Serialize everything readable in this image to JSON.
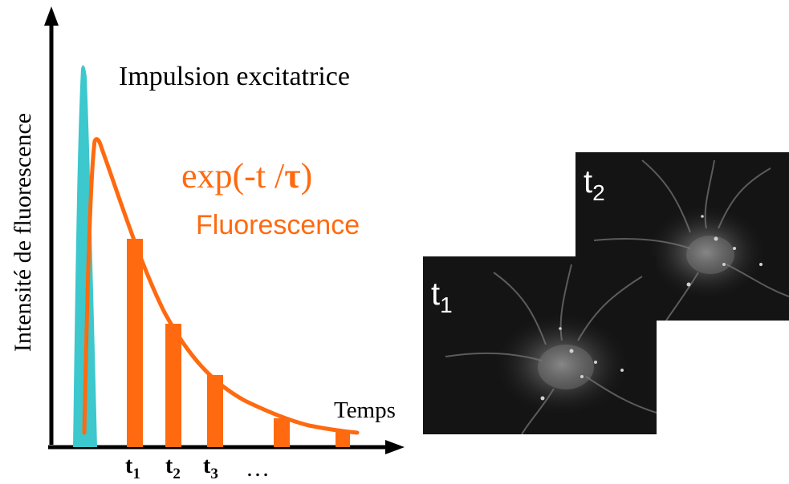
{
  "axes": {
    "y_label": "Intensité de fluorescence",
    "x_label": "Temps"
  },
  "labels": {
    "excitation": "Impulsion excitatrice",
    "formula_prefix": "exp(-t /",
    "formula_tau": "τ",
    "formula_suffix": ")",
    "fluorescence": "Fluorescence"
  },
  "gates": [
    {
      "base": "t",
      "sub": "1"
    },
    {
      "base": "t",
      "sub": "2"
    },
    {
      "base": "t",
      "sub": "3"
    }
  ],
  "gate_ellipsis": "…",
  "images": [
    {
      "base": "t",
      "sub": "1"
    },
    {
      "base": "t",
      "sub": "2"
    }
  ],
  "colors": {
    "excitation_pulse": "#3cc8cc",
    "fluorescence_curve": "#ff6a10",
    "axis": "#000000",
    "micrograph_bg": "#141414"
  }
}
